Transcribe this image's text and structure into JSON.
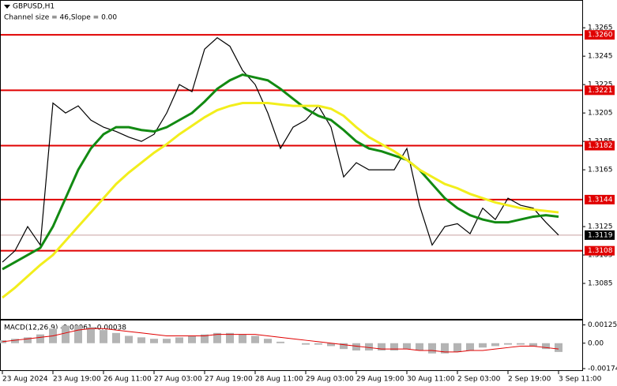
{
  "chart_data": [
    {
      "type": "line",
      "title": "GBPUSD,H1",
      "subtitle": "Channel size = 46,Slope = 0.00",
      "categories": [
        "23 Aug 2024",
        null,
        null,
        null,
        "23 Aug 19:00",
        null,
        null,
        null,
        "26 Aug 11:00",
        null,
        null,
        null,
        "27 Aug 03:00",
        null,
        null,
        null,
        "27 Aug 19:00",
        null,
        null,
        null,
        "28 Aug 11:00",
        null,
        null,
        null,
        "29 Aug 03:00",
        null,
        null,
        null,
        "29 Aug 19:00",
        null,
        null,
        null,
        "30 Aug 11:00",
        null,
        null,
        null,
        "2 Sep 03:00",
        null,
        null,
        null,
        "2 Sep 19:00",
        null,
        null,
        null,
        "3 Sep 11:00"
      ],
      "series": [
        {
          "color": "#000000",
          "values": [
            1.31,
            1.3108,
            1.3125,
            1.3112,
            1.3212,
            1.3205,
            1.321,
            1.32,
            1.3195,
            1.3192,
            1.3188,
            1.3185,
            1.319,
            1.3205,
            1.3225,
            1.322,
            1.325,
            1.3258,
            1.3252,
            1.3235,
            1.3225,
            1.3205,
            1.318,
            1.3195,
            1.32,
            1.321,
            1.3195,
            1.316,
            1.317,
            1.3165,
            1.3165,
            1.3165,
            1.318,
            1.314,
            1.3112,
            1.3125,
            1.3127,
            1.312,
            1.3138,
            1.313,
            1.3145,
            1.314,
            1.3138,
            1.3128,
            1.3119
          ]
        },
        {
          "color": "#128a12",
          "values": [
            1.3095,
            1.31,
            1.3105,
            1.311,
            1.3125,
            1.3145,
            1.3165,
            1.318,
            1.319,
            1.3195,
            1.3195,
            1.3193,
            1.3192,
            1.3195,
            1.32,
            1.3205,
            1.3213,
            1.3222,
            1.3228,
            1.3232,
            1.323,
            1.3228,
            1.3222,
            1.3215,
            1.3208,
            1.3203,
            1.32,
            1.3193,
            1.3185,
            1.318,
            1.3178,
            1.3175,
            1.3172,
            1.3165,
            1.3155,
            1.3145,
            1.3138,
            1.3133,
            1.313,
            1.3128,
            1.3128,
            1.313,
            1.3132,
            1.3133,
            1.3132
          ]
        },
        {
          "color": "#f2ee1c",
          "values": [
            1.3075,
            1.3082,
            1.309,
            1.3098,
            1.3105,
            1.3115,
            1.3125,
            1.3135,
            1.3145,
            1.3155,
            1.3163,
            1.317,
            1.3177,
            1.3183,
            1.319,
            1.3196,
            1.3202,
            1.3207,
            1.321,
            1.3212,
            1.3212,
            1.3212,
            1.3211,
            1.321,
            1.321,
            1.321,
            1.3208,
            1.3203,
            1.3195,
            1.3188,
            1.3183,
            1.3178,
            1.3172,
            1.3165,
            1.316,
            1.3155,
            1.3152,
            1.3148,
            1.3145,
            1.3142,
            1.314,
            1.3138,
            1.3137,
            1.3136,
            1.3135
          ]
        }
      ],
      "ylim": [
        1.306,
        1.3284
      ],
      "yticks": [
        1.3265,
        1.3245,
        1.3225,
        1.3205,
        1.3185,
        1.3165,
        1.3125,
        1.3105,
        1.3085
      ],
      "levels": [
        {
          "value": 1.326,
          "label": "1.3260"
        },
        {
          "value": 1.3221,
          "label": "1.3221"
        },
        {
          "value": 1.3182,
          "label": "1.3182"
        },
        {
          "value": 1.3144,
          "label": "1.3144"
        },
        {
          "value": 1.3108,
          "label": "1.3108"
        }
      ],
      "level_color": "#e00000",
      "current_price": 1.3119
    },
    {
      "type": "bar",
      "title": "MACD(12,26,9) -0.00061 -0.00038",
      "values": [
        0.0002,
        0.0003,
        0.0004,
        0.0006,
        0.001,
        0.0012,
        0.0012,
        0.0011,
        0.0009,
        0.0007,
        0.0005,
        0.0004,
        0.0003,
        0.0003,
        0.0004,
        0.0005,
        0.0006,
        0.0007,
        0.0007,
        0.0006,
        0.0005,
        0.0003,
        0.0001,
        0.0,
        -0.0001,
        -0.0001,
        -0.0002,
        -0.0004,
        -0.0005,
        -0.0005,
        -0.0005,
        -0.0005,
        -0.0004,
        -0.0005,
        -0.0007,
        -0.0007,
        -0.0006,
        -0.0005,
        -0.0003,
        -0.0002,
        -0.0001,
        -0.0001,
        -0.0002,
        -0.0004,
        -0.0006
      ],
      "color": "#b4b4b4",
      "signal": [
        0.0001,
        0.0002,
        0.0003,
        0.0004,
        0.0005,
        0.0007,
        0.0009,
        0.001,
        0.001,
        0.0009,
        0.0008,
        0.0007,
        0.0006,
        0.0005,
        0.0005,
        0.0005,
        0.0005,
        0.0006,
        0.0006,
        0.0006,
        0.0006,
        0.0005,
        0.0004,
        0.0003,
        0.0002,
        0.0001,
        0.0,
        -0.0001,
        -0.0002,
        -0.0003,
        -0.0004,
        -0.0004,
        -0.0004,
        -0.0005,
        -0.0005,
        -0.0006,
        -0.0006,
        -0.0005,
        -0.0005,
        -0.0004,
        -0.0003,
        -0.0002,
        -0.0002,
        -0.0003,
        -0.0004
      ],
      "signal_color": "#e00000",
      "ylim": [
        -0.00185,
        0.0015
      ],
      "yticks": [
        0.00125,
        {
          "value": 0,
          "label": "0.00"
        },
        -0.00174
      ]
    }
  ]
}
